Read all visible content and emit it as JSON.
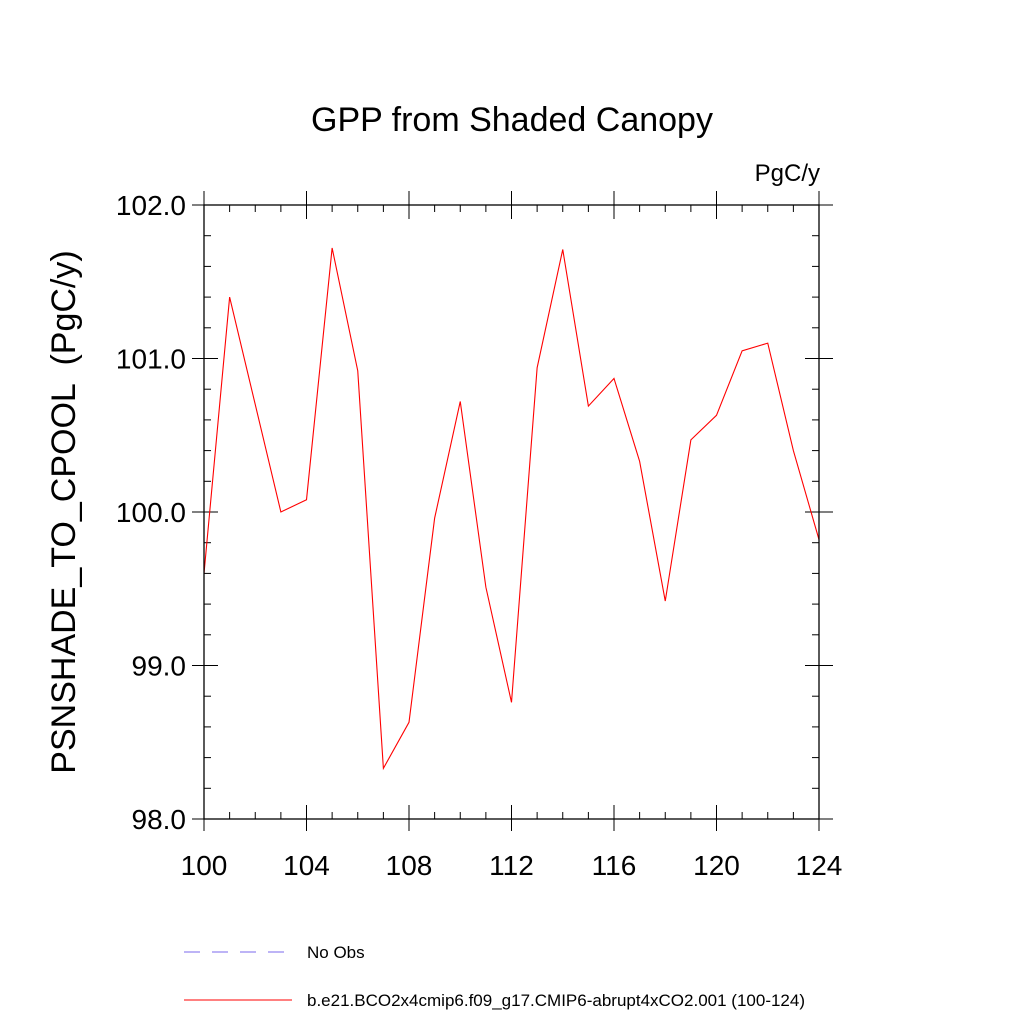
{
  "chart_data": {
    "type": "line",
    "title": "GPP from Shaded Canopy",
    "units": "PgC/y",
    "ylabel": "PSNSHADE_TO_CPOOL  (PgC/y)",
    "xlabel": "",
    "xlim": [
      100,
      124
    ],
    "ylim": [
      98.0,
      102.0
    ],
    "x_ticks": [
      100,
      104,
      108,
      112,
      116,
      120,
      124
    ],
    "y_ticks": [
      98.0,
      99.0,
      100.0,
      101.0,
      102.0
    ],
    "x_tick_labels": [
      "100",
      "104",
      "108",
      "112",
      "116",
      "120",
      "124"
    ],
    "y_tick_labels": [
      "98.0",
      "99.0",
      "100.0",
      "101.0",
      "102.0"
    ],
    "grid": false,
    "legend": "bottom",
    "series": [
      {
        "name": "b.e21.BCO2x4cmip6.f09_g17.CMIP6-abrupt4xCO2.001 (100-124)",
        "color": "#ff0000",
        "style": "solid",
        "x": [
          100,
          101,
          102,
          103,
          104,
          105,
          106,
          107,
          108,
          109,
          110,
          111,
          112,
          113,
          114,
          115,
          116,
          117,
          118,
          119,
          120,
          121,
          122,
          123,
          124
        ],
        "values": [
          99.6,
          101.4,
          100.7,
          100.0,
          100.08,
          101.72,
          100.92,
          98.33,
          98.63,
          99.96,
          100.72,
          99.51,
          98.76,
          100.94,
          101.71,
          100.69,
          100.87,
          100.33,
          99.42,
          100.47,
          100.63,
          101.05,
          101.1,
          100.4,
          99.82
        ]
      }
    ],
    "legend_entries": [
      {
        "label": "No Obs",
        "color": "#7b68ee",
        "style": "dashed"
      },
      {
        "label": "b.e21.BCO2x4cmip6.f09_g17.CMIP6-abrupt4xCO2.001 (100-124)",
        "color": "#ff0000",
        "style": "solid"
      }
    ]
  }
}
